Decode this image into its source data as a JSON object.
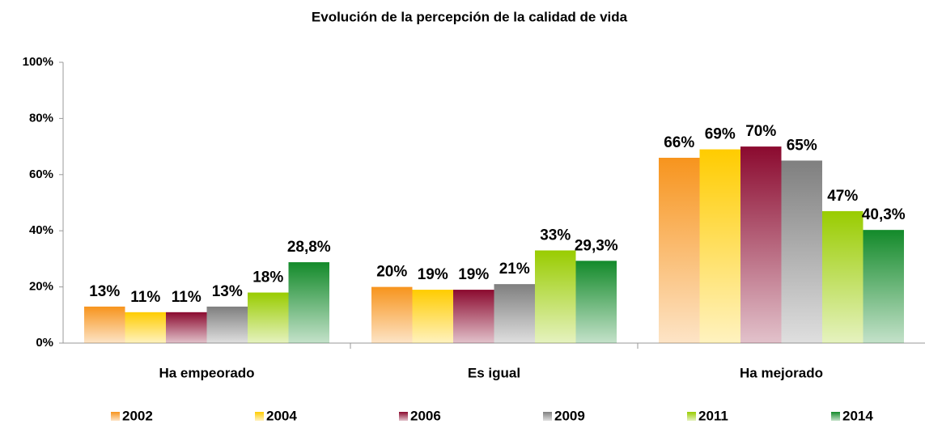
{
  "chart_data": {
    "type": "bar",
    "title": "Evolución de la percepción de la calidad de vida",
    "categories": [
      "Ha empeorado",
      "Es igual",
      "Ha mejorado"
    ],
    "series": [
      {
        "name": "2002",
        "color": "#f7941d",
        "values": [
          13,
          20,
          66
        ],
        "value_labels": [
          "13%",
          "20%",
          "66%"
        ]
      },
      {
        "name": "2004",
        "color": "#ffcc00",
        "values": [
          11,
          19,
          69
        ],
        "value_labels": [
          "11%",
          "19%",
          "69%"
        ]
      },
      {
        "name": "2006",
        "color": "#8b0a2f",
        "values": [
          11,
          19,
          70
        ],
        "value_labels": [
          "11%",
          "19%",
          "70%"
        ]
      },
      {
        "name": "2009",
        "color": "#7f7f7f",
        "values": [
          13,
          21,
          65
        ],
        "value_labels": [
          "13%",
          "21%",
          "65%"
        ]
      },
      {
        "name": "2011",
        "color": "#99cc00",
        "values": [
          18,
          33,
          47
        ],
        "value_labels": [
          "18%",
          "33%",
          "47%"
        ]
      },
      {
        "name": "2014",
        "color": "#138a2a",
        "values": [
          28.8,
          29.3,
          40.3
        ],
        "value_labels": [
          "28,8%",
          "29,3%",
          "40,3%"
        ]
      }
    ],
    "ylim": [
      0,
      100
    ],
    "yticks": [
      {
        "value": 0,
        "label": "0%"
      },
      {
        "value": 20,
        "label": "20%"
      },
      {
        "value": 40,
        "label": "40%"
      },
      {
        "value": 60,
        "label": "60%"
      },
      {
        "value": 80,
        "label": "80%"
      },
      {
        "value": 100,
        "label": "100%"
      }
    ],
    "grid": false,
    "legend": "bottom"
  }
}
